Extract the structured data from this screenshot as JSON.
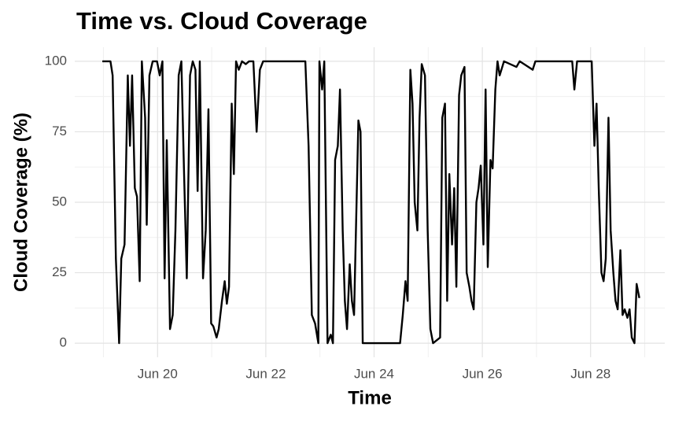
{
  "chart_data": {
    "type": "line",
    "title": "Time vs. Cloud Coverage",
    "x_label": "Time",
    "y_label": "Cloud Coverage (%)",
    "series": [
      {
        "name": "Cloud Coverage",
        "color": "#000000",
        "x": [
          18.98,
          19.13,
          19.17,
          19.23,
          19.29,
          19.33,
          19.39,
          19.45,
          19.49,
          19.53,
          19.58,
          19.62,
          19.67,
          19.71,
          19.77,
          19.8,
          19.85,
          19.91,
          19.99,
          20.04,
          20.09,
          20.13,
          20.17,
          20.23,
          20.28,
          20.33,
          20.39,
          20.44,
          20.49,
          20.54,
          20.6,
          20.65,
          20.7,
          20.74,
          20.78,
          20.84,
          20.89,
          20.94,
          20.99,
          21.03,
          21.09,
          21.13,
          21.19,
          21.24,
          21.28,
          21.32,
          21.37,
          21.41,
          21.45,
          21.5,
          21.56,
          21.63,
          21.69,
          21.77,
          21.83,
          21.89,
          21.95,
          22.03,
          22.73,
          22.79,
          22.85,
          22.91,
          22.97,
          22.99,
          23.04,
          23.08,
          23.14,
          23.2,
          23.24,
          23.28,
          23.33,
          23.37,
          23.42,
          23.46,
          23.5,
          23.55,
          23.59,
          23.63,
          23.71,
          23.75,
          23.79,
          24.48,
          24.53,
          24.58,
          24.62,
          24.67,
          24.71,
          24.75,
          24.8,
          24.84,
          24.88,
          24.94,
          24.99,
          25.04,
          25.09,
          25.22,
          25.26,
          25.31,
          25.35,
          25.39,
          25.44,
          25.48,
          25.52,
          25.57,
          25.61,
          25.67,
          25.71,
          25.76,
          25.8,
          25.84,
          25.89,
          25.93,
          25.97,
          26.02,
          26.06,
          26.1,
          26.15,
          26.19,
          26.24,
          26.28,
          26.32,
          26.4,
          26.63,
          26.69,
          26.93,
          26.98,
          27.66,
          27.7,
          27.75,
          28.02,
          28.07,
          28.11,
          28.15,
          28.2,
          28.24,
          28.28,
          28.33,
          28.37,
          28.42,
          28.46,
          28.5,
          28.55,
          28.59,
          28.63,
          28.68,
          28.72,
          28.76,
          28.81,
          28.85,
          28.9
        ],
        "values": [
          100,
          100,
          95,
          30,
          0,
          30,
          35,
          95,
          70,
          95,
          55,
          52,
          22,
          100,
          80,
          42,
          95,
          100,
          100,
          95,
          100,
          23,
          72,
          5,
          10,
          40,
          95,
          100,
          60,
          23,
          95,
          100,
          97,
          54,
          100,
          23,
          40,
          83,
          7,
          6,
          2,
          5,
          15,
          22,
          14,
          20,
          85,
          60,
          100,
          97,
          100,
          99,
          100,
          100,
          75,
          97,
          100,
          100,
          100,
          70,
          10,
          7,
          0,
          100,
          90,
          100,
          0,
          3,
          0,
          65,
          70,
          90,
          40,
          15,
          5,
          28,
          15,
          10,
          79,
          75,
          0,
          0,
          10,
          22,
          15,
          97,
          85,
          50,
          40,
          80,
          99,
          95,
          40,
          5,
          0,
          2,
          80,
          85,
          15,
          60,
          35,
          55,
          20,
          88,
          95,
          98,
          25,
          20,
          15,
          12,
          50,
          55,
          63,
          35,
          90,
          27,
          65,
          62,
          90,
          100,
          95,
          100,
          98,
          100,
          97,
          100,
          100,
          90,
          100,
          100,
          70,
          85,
          55,
          25,
          22,
          30,
          80,
          40,
          25,
          15,
          12,
          33,
          10,
          12,
          9,
          12,
          2,
          0,
          21,
          16
        ]
      }
    ],
    "xlim": [
      18.47,
      29.37
    ],
    "xticks": [
      {
        "value": 20,
        "label": "Jun 20"
      },
      {
        "value": 22,
        "label": "Jun 22"
      },
      {
        "value": 24,
        "label": "Jun 24"
      },
      {
        "value": 26,
        "label": "Jun 26"
      },
      {
        "value": 28,
        "label": "Jun 28"
      }
    ],
    "ylim": [
      -5,
      105
    ],
    "yticks": [
      0,
      25,
      50,
      75,
      100
    ],
    "grid": true
  }
}
